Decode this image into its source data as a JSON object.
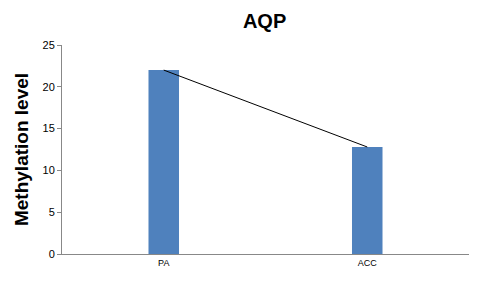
{
  "chart_data": {
    "type": "bar",
    "title": "AQP",
    "y_label": "Methylation level",
    "categories": [
      "PA",
      "ACC"
    ],
    "series": [
      {
        "type": "bar",
        "color": "#4f81bd",
        "values": [
          22,
          12.8
        ]
      },
      {
        "type": "line",
        "color": "#000000",
        "values": [
          22,
          12.8
        ]
      }
    ],
    "ylim": [
      0,
      25
    ],
    "yticks": [
      0,
      5,
      10,
      15,
      20,
      25
    ],
    "grid": false
  }
}
